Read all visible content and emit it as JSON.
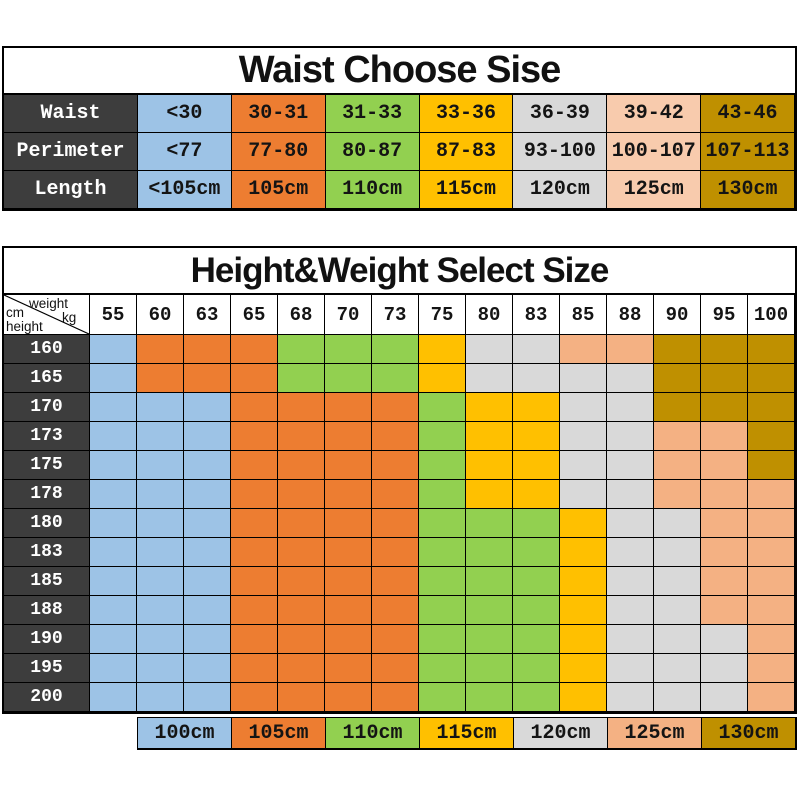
{
  "palette": {
    "B": "#9DC3E6",
    "O": "#ED7D31",
    "G": "#92D050",
    "Y": "#FFC000",
    "S": "#D9D9D9",
    "P": "#F4B183",
    "PL": "#F8CBAD",
    "D": "#BF9000",
    "dark_header": "#3D3D3D"
  },
  "chart_data": [
    {
      "type": "table",
      "title": "Waist Choose Sise",
      "column_colors": [
        "B",
        "O",
        "G",
        "Y",
        "S",
        "PL",
        "D"
      ],
      "rows": [
        {
          "label": "Waist",
          "cells": [
            "<30",
            "30-31",
            "31-33",
            "33-36",
            "36-39",
            "39-42",
            "43-46"
          ]
        },
        {
          "label": "Perimeter",
          "cells": [
            "<77",
            "77-80",
            "80-87",
            "87-83",
            "93-100",
            "100-107",
            "107-113"
          ]
        },
        {
          "label": "Length",
          "cells": [
            "<105cm",
            "105cm",
            "110cm",
            "115cm",
            "120cm",
            "125cm",
            "130cm"
          ]
        }
      ]
    },
    {
      "type": "heatmap",
      "title": "Height&Weight Select Size",
      "corner_labels": {
        "top_right": "weight",
        "unit_right": "kg",
        "unit_left": "cm",
        "bottom_left": "height"
      },
      "x_weights_kg": [
        "55",
        "60",
        "63",
        "65",
        "68",
        "70",
        "73",
        "75",
        "80",
        "83",
        "85",
        "88",
        "90",
        "95",
        "100"
      ],
      "y_heights_cm": [
        "160",
        "165",
        "170",
        "173",
        "175",
        "178",
        "180",
        "183",
        "185",
        "188",
        "190",
        "195",
        "200"
      ],
      "cells": [
        [
          "B",
          "O",
          "O",
          "O",
          "G",
          "G",
          "G",
          "Y",
          "S",
          "S",
          "P",
          "P",
          "D",
          "D",
          "D"
        ],
        [
          "B",
          "O",
          "O",
          "O",
          "G",
          "G",
          "G",
          "Y",
          "S",
          "S",
          "S",
          "S",
          "D",
          "D",
          "D"
        ],
        [
          "B",
          "B",
          "B",
          "O",
          "O",
          "O",
          "O",
          "G",
          "Y",
          "Y",
          "S",
          "S",
          "D",
          "D",
          "D"
        ],
        [
          "B",
          "B",
          "B",
          "O",
          "O",
          "O",
          "O",
          "G",
          "Y",
          "Y",
          "S",
          "S",
          "P",
          "P",
          "D"
        ],
        [
          "B",
          "B",
          "B",
          "O",
          "O",
          "O",
          "O",
          "G",
          "Y",
          "Y",
          "S",
          "S",
          "P",
          "P",
          "D"
        ],
        [
          "B",
          "B",
          "B",
          "O",
          "O",
          "O",
          "O",
          "G",
          "Y",
          "Y",
          "S",
          "S",
          "P",
          "P",
          "P"
        ],
        [
          "B",
          "B",
          "B",
          "O",
          "O",
          "O",
          "O",
          "G",
          "G",
          "G",
          "Y",
          "S",
          "S",
          "P",
          "P"
        ],
        [
          "B",
          "B",
          "B",
          "O",
          "O",
          "O",
          "O",
          "G",
          "G",
          "G",
          "Y",
          "S",
          "S",
          "P",
          "P"
        ],
        [
          "B",
          "B",
          "B",
          "O",
          "O",
          "O",
          "O",
          "G",
          "G",
          "G",
          "Y",
          "S",
          "S",
          "P",
          "P"
        ],
        [
          "B",
          "B",
          "B",
          "O",
          "O",
          "O",
          "O",
          "G",
          "G",
          "G",
          "Y",
          "S",
          "S",
          "P",
          "P"
        ],
        [
          "B",
          "B",
          "B",
          "O",
          "O",
          "O",
          "O",
          "G",
          "G",
          "G",
          "Y",
          "S",
          "S",
          "S",
          "P"
        ],
        [
          "B",
          "B",
          "B",
          "O",
          "O",
          "O",
          "O",
          "G",
          "G",
          "G",
          "Y",
          "S",
          "S",
          "S",
          "P"
        ],
        [
          "B",
          "B",
          "B",
          "O",
          "O",
          "O",
          "O",
          "G",
          "G",
          "G",
          "Y",
          "S",
          "S",
          "S",
          "P"
        ]
      ],
      "legend": [
        {
          "label": "100cm",
          "color": "B"
        },
        {
          "label": "105cm",
          "color": "O"
        },
        {
          "label": "110cm",
          "color": "G"
        },
        {
          "label": "115cm",
          "color": "Y"
        },
        {
          "label": "120cm",
          "color": "S"
        },
        {
          "label": "125cm",
          "color": "P"
        },
        {
          "label": "130cm",
          "color": "D"
        }
      ]
    }
  ]
}
